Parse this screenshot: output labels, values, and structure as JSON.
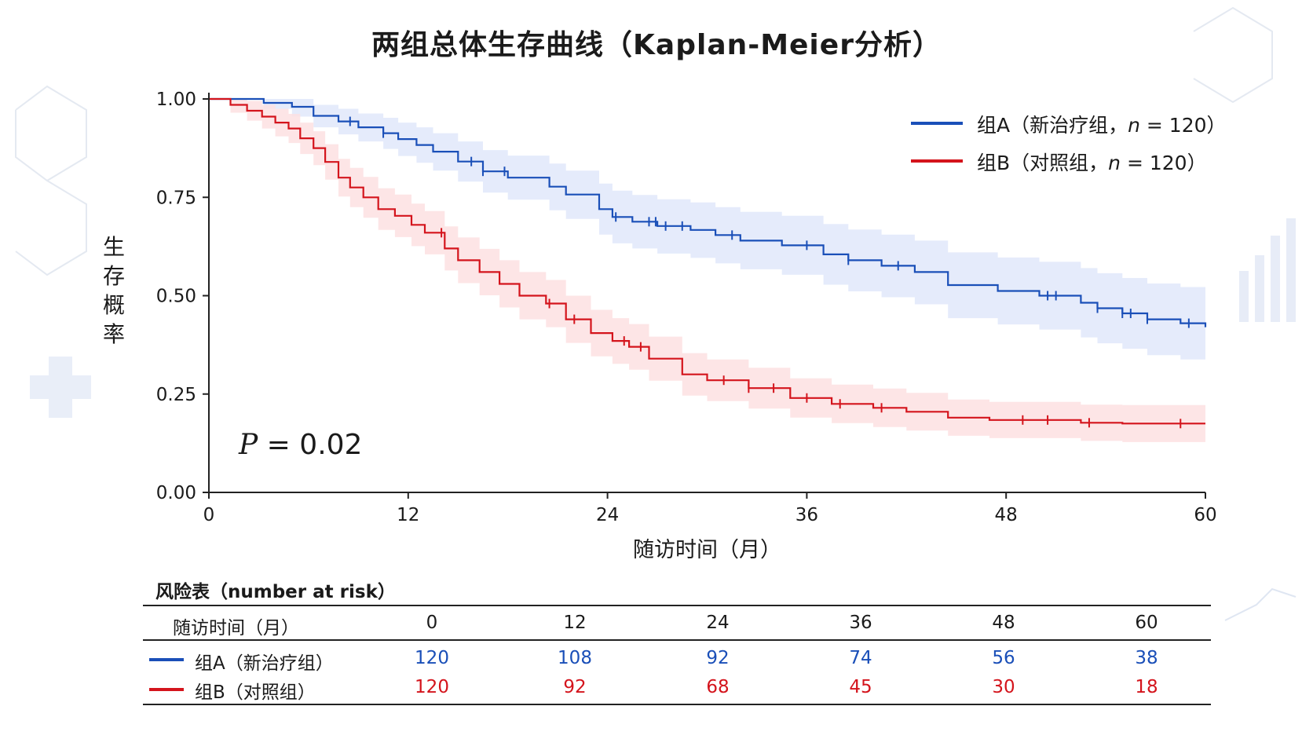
{
  "title": "两组总体生存曲线（Kaplan-Meier分析）",
  "p_value_label": "P",
  "p_value_text": " = 0.02",
  "colors": {
    "groupA": "#1a4fb8",
    "groupB": "#d4141c",
    "bandA": "#e0e8fa",
    "bandB": "#fde0e2"
  },
  "legend": [
    {
      "prefix": "组A（新治疗组，",
      "n": "n",
      "suffix": " = 120）"
    },
    {
      "prefix": "组B（对照组，",
      "n": "n",
      "suffix": " = 120）"
    }
  ],
  "risk_table": {
    "title": "风险表（number at risk）",
    "header_label": "随访时间（月）",
    "times": [
      "0",
      "12",
      "24",
      "36",
      "48",
      "60"
    ],
    "rows": [
      {
        "label": "组A（新治疗组）",
        "values": [
          "120",
          "108",
          "92",
          "74",
          "56",
          "38"
        ]
      },
      {
        "label": "组B（对照组）",
        "values": [
          "120",
          "92",
          "68",
          "45",
          "30",
          "18"
        ]
      }
    ]
  },
  "chart_data": {
    "type": "line",
    "title": "两组总体生存曲线（Kaplan-Meier分析）",
    "xlabel": "随访时间（月）",
    "ylabel": "生存概率",
    "xlim": [
      0,
      60
    ],
    "ylim": [
      0,
      1
    ],
    "x_ticks": [
      0,
      12,
      24,
      36,
      48,
      60
    ],
    "y_ticks": [
      0.0,
      0.25,
      0.5,
      0.75,
      1.0
    ],
    "y_tick_labels": [
      "0.00",
      "0.25",
      "0.50",
      "0.75",
      "1.00"
    ],
    "step": true,
    "series": [
      {
        "name": "组A（新治疗组，n = 120）",
        "x": [
          0,
          3.3,
          5,
          6.3,
          7.8,
          9,
          10.5,
          11.4,
          12.5,
          13.5,
          15,
          16.5,
          18,
          20.5,
          21.5,
          23.5,
          24.3,
          25.5,
          27,
          29,
          30.5,
          32,
          34.5,
          37,
          38.5,
          40.5,
          42.5,
          44.5,
          47.5,
          50,
          52.5,
          53.5,
          55,
          56.5,
          58.5,
          60
        ],
        "y": [
          1.0,
          0.99,
          0.98,
          0.957,
          0.943,
          0.928,
          0.913,
          0.898,
          0.883,
          0.866,
          0.841,
          0.816,
          0.8,
          0.777,
          0.757,
          0.72,
          0.7,
          0.688,
          0.677,
          0.667,
          0.654,
          0.64,
          0.628,
          0.605,
          0.59,
          0.576,
          0.56,
          0.527,
          0.512,
          0.5,
          0.482,
          0.468,
          0.455,
          0.44,
          0.43,
          0.42
        ],
        "lower": [
          1.0,
          0.975,
          0.955,
          0.928,
          0.91,
          0.892,
          0.873,
          0.855,
          0.838,
          0.818,
          0.79,
          0.762,
          0.744,
          0.717,
          0.695,
          0.655,
          0.633,
          0.62,
          0.607,
          0.596,
          0.582,
          0.567,
          0.553,
          0.528,
          0.511,
          0.496,
          0.478,
          0.443,
          0.427,
          0.414,
          0.394,
          0.379,
          0.365,
          0.349,
          0.338,
          0.33
        ],
        "upper": [
          1.0,
          1.0,
          1.0,
          0.985,
          0.975,
          0.963,
          0.952,
          0.94,
          0.928,
          0.913,
          0.892,
          0.87,
          0.856,
          0.836,
          0.818,
          0.785,
          0.767,
          0.756,
          0.745,
          0.737,
          0.725,
          0.713,
          0.703,
          0.682,
          0.668,
          0.655,
          0.64,
          0.61,
          0.597,
          0.586,
          0.57,
          0.557,
          0.545,
          0.531,
          0.522,
          0.51
        ],
        "censored_x": [
          8.5,
          10.5,
          15.8,
          16.5,
          17.8,
          24.5,
          26.5,
          26.9,
          27.5,
          28.5,
          31.5,
          36,
          38.5,
          41.5,
          50.5,
          51,
          53.5,
          55,
          55.5,
          56.5,
          59
        ]
      },
      {
        "name": "组B（对照组，n = 120）",
        "x": [
          0,
          1.3,
          2.3,
          3.2,
          4,
          4.8,
          5.5,
          6.3,
          7,
          7.8,
          8.5,
          9.3,
          10.2,
          11.2,
          12.2,
          13,
          14.2,
          15,
          16.3,
          17.5,
          18.7,
          20.3,
          21.5,
          23,
          24.3,
          25.3,
          26.5,
          28.5,
          30,
          32.5,
          35,
          37.5,
          40,
          42,
          44.5,
          47,
          52.5,
          55,
          60
        ],
        "y": [
          1.0,
          0.985,
          0.97,
          0.955,
          0.94,
          0.925,
          0.9,
          0.875,
          0.84,
          0.8,
          0.775,
          0.75,
          0.72,
          0.703,
          0.68,
          0.66,
          0.62,
          0.59,
          0.56,
          0.53,
          0.5,
          0.48,
          0.44,
          0.405,
          0.385,
          0.37,
          0.34,
          0.3,
          0.285,
          0.265,
          0.24,
          0.225,
          0.215,
          0.205,
          0.19,
          0.184,
          0.177,
          0.175,
          0.175
        ],
        "lower": [
          1.0,
          0.965,
          0.945,
          0.925,
          0.905,
          0.888,
          0.86,
          0.832,
          0.795,
          0.752,
          0.725,
          0.698,
          0.667,
          0.649,
          0.626,
          0.605,
          0.564,
          0.532,
          0.501,
          0.47,
          0.44,
          0.42,
          0.38,
          0.346,
          0.327,
          0.312,
          0.284,
          0.246,
          0.232,
          0.213,
          0.19,
          0.176,
          0.166,
          0.157,
          0.144,
          0.138,
          0.131,
          0.128,
          0.125
        ],
        "upper": [
          1.0,
          1.0,
          0.995,
          0.985,
          0.975,
          0.962,
          0.94,
          0.918,
          0.885,
          0.848,
          0.825,
          0.802,
          0.773,
          0.757,
          0.734,
          0.715,
          0.676,
          0.648,
          0.619,
          0.59,
          0.56,
          0.54,
          0.5,
          0.464,
          0.443,
          0.428,
          0.396,
          0.354,
          0.338,
          0.317,
          0.29,
          0.274,
          0.264,
          0.253,
          0.236,
          0.23,
          0.223,
          0.222,
          0.225
        ],
        "censored_x": [
          14,
          20.5,
          22,
          25,
          26,
          31,
          32.5,
          34,
          36,
          38,
          40.5,
          49,
          50.5,
          53,
          58.5
        ]
      }
    ]
  }
}
